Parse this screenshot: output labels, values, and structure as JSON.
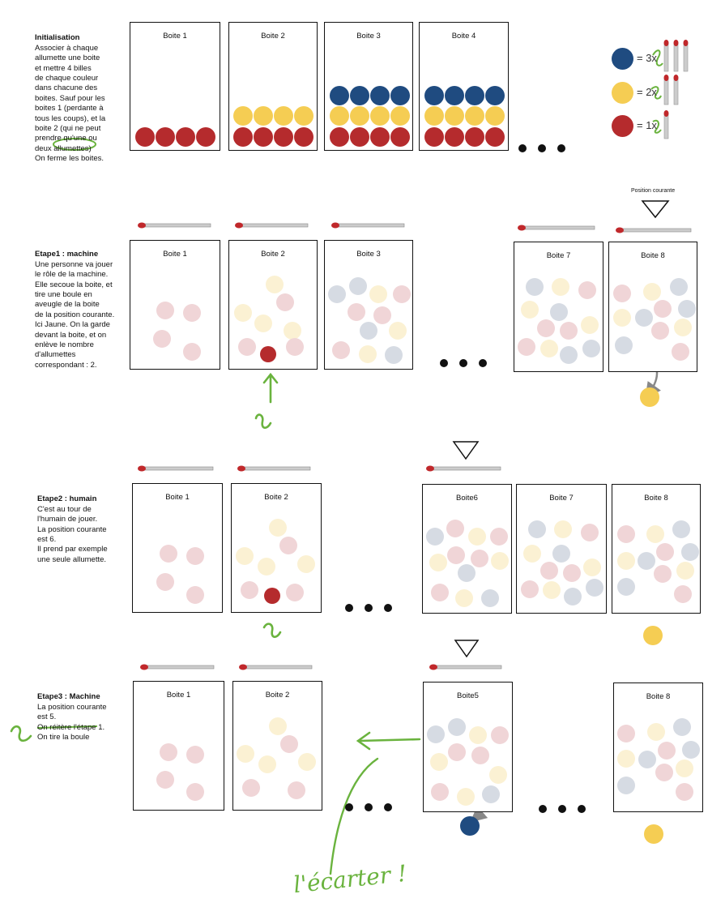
{
  "colors": {
    "red": "#b52b2d",
    "yellow": "#f5cd53",
    "blue": "#1f4b80",
    "pale_red": "#f0d5d7",
    "pale_yellow": "#fbf1d3",
    "pale_blue": "#d6dbe3",
    "green_annotation": "#6ab33e",
    "arrow_gray": "#888888"
  },
  "initialisation": {
    "heading": "Initialisation",
    "text": "Associer à chaque\nallumette une boite\net mettre 4 billes\nde chaque couleur\ndans chacune des\nboites. Sauf pour les\nboites 1 (perdante à\ntous les coups), et la\nboite 2 (qui ne peut\nprendre qu'une ou\ndeux allumettes)\nOn ferme les boites.",
    "boxes": [
      "Boite 1",
      "Boite 2",
      "Boite 3",
      "Boite 4"
    ]
  },
  "legend": {
    "blue_label": "= 3x",
    "yellow_label": "= 2x",
    "red_label": "= 1x",
    "blue_icon": "three-matches-icon",
    "yellow_icon": "two-matches-icon",
    "red_icon": "one-match-icon"
  },
  "etape1": {
    "heading": "Etape1 : machine",
    "text": "Une personne va jouer\nle rôle de la machine.\nElle secoue la boite, et\ntire une boule en\naveugle de la boite\nde la position courante.\nIci Jaune. On la garde\ndevant la boite, et on\nenlève le nombre\nd'allumettes\ncorrespondant : 2.",
    "position_label": "Position courante",
    "boxes": [
      "Boite 1",
      "Boite 2",
      "Boite 3",
      "Boite 7",
      "Boite 8"
    ]
  },
  "etape2": {
    "heading": "Etape2 : humain",
    "text": "C'est au tour de\nl'humain de jouer.\nLa position courante\nest 6.\nIl prend par exemple\nune seule allumette.",
    "boxes": [
      "Boite 1",
      "Boite 2",
      "Boite6",
      "Boite 7",
      "Boite 8"
    ]
  },
  "etape3": {
    "heading": "Etape3 : Machine",
    "text": "La position courante\nest 5.\nOn réitère l'étape 1.",
    "struck_text": "On tire la boule",
    "boxes": [
      "Boite 1",
      "Boite 2",
      "Boite5",
      "Boite 8"
    ],
    "handwritten_note": "l'écarter !"
  }
}
